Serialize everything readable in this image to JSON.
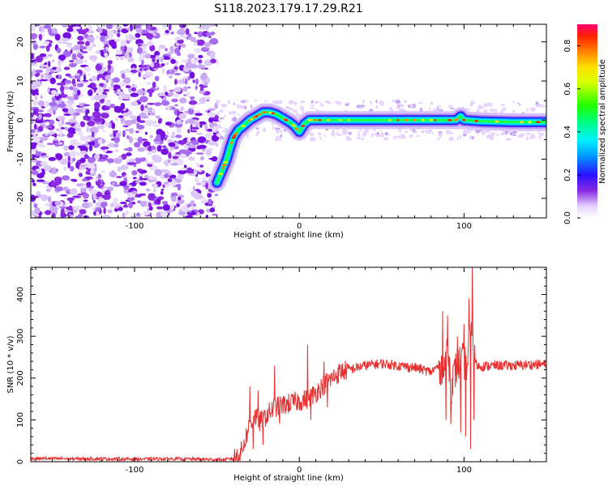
{
  "title": "S118.2023.179.17.29.R21",
  "chart_data": [
    {
      "type": "heatmap",
      "xlabel": "Height of straight line (km)",
      "ylabel": "Frequency (Hz)",
      "xlim": [
        -163,
        150
      ],
      "ylim": [
        -25,
        24.5
      ],
      "xticks": [
        -100,
        0,
        100
      ],
      "yticks": [
        -20,
        -10,
        0,
        10,
        20
      ],
      "grid": false,
      "noise_region": {
        "x_from": -163,
        "x_to": -50
      },
      "signal_trace": {
        "name": "",
        "x": [
          -50,
          -47,
          -44,
          -42,
          -40,
          -37,
          -34,
          -30,
          -26,
          -22,
          -18,
          -14,
          -10,
          -6,
          -3,
          0,
          3,
          6,
          10,
          20,
          40,
          60,
          80,
          90,
          95,
          98,
          100,
          110,
          130,
          150
        ],
        "y": [
          -16,
          -13,
          -10,
          -7,
          -4.5,
          -2.5,
          -1.5,
          0,
          1,
          2,
          2,
          1.5,
          0.5,
          -0.5,
          -1.5,
          -3,
          -1,
          0,
          0,
          0,
          0,
          0,
          0,
          0,
          0,
          1,
          0,
          -0.3,
          -0.5,
          -0.5
        ]
      },
      "colorbar": {
        "label": "Normalized spectral amplitude",
        "min": 0,
        "max": 0.9,
        "ticks": [
          "0.0",
          "0.2",
          "0.4",
          "0.6",
          "0.8"
        ]
      }
    },
    {
      "type": "line",
      "xlabel": "Height of straight line (km)",
      "ylabel": "SNR (10 * v/v)",
      "xlim": [
        -163,
        150
      ],
      "ylim": [
        0,
        465
      ],
      "xticks": [
        -100,
        0,
        100
      ],
      "yticks": [
        0,
        100,
        200,
        300,
        400
      ],
      "grid": false,
      "series": [
        {
          "name": "",
          "color": "#e83030",
          "x": [
            -163,
            -140,
            -120,
            -100,
            -80,
            -60,
            -50,
            -45,
            -40,
            -35,
            -30,
            -27,
            -24,
            -20,
            -15,
            -10,
            -5,
            0,
            5,
            10,
            15,
            20,
            25,
            30,
            40,
            50,
            60,
            70,
            80,
            85,
            88,
            90,
            92,
            95,
            98,
            100,
            102,
            104,
            105,
            106,
            108,
            110,
            120,
            130,
            140,
            150
          ],
          "values": [
            8,
            7,
            7,
            6,
            7,
            6,
            5,
            5,
            8,
            25,
            90,
            110,
            95,
            110,
            130,
            135,
            140,
            145,
            150,
            165,
            185,
            200,
            215,
            220,
            230,
            235,
            230,
            225,
            215,
            230,
            220,
            290,
            180,
            220,
            240,
            240,
            230,
            320,
            350,
            250,
            230,
            228,
            230,
            230,
            232,
            233
          ]
        }
      ],
      "spikes": [
        {
          "x": 87,
          "value": 360
        },
        {
          "x": 89,
          "value": 100
        },
        {
          "x": 90,
          "value": 350
        },
        {
          "x": 92,
          "value": 90
        },
        {
          "x": 96,
          "value": 300
        },
        {
          "x": 98,
          "value": 70
        },
        {
          "x": 100,
          "value": 330
        },
        {
          "x": 101,
          "value": 60
        },
        {
          "x": 103,
          "value": 390
        },
        {
          "x": 104,
          "value": 30
        },
        {
          "x": 105,
          "value": 465
        },
        {
          "x": 106,
          "value": 100
        },
        {
          "x": -30,
          "value": 180
        },
        {
          "x": -28,
          "value": 30
        },
        {
          "x": -25,
          "value": 170
        },
        {
          "x": -22,
          "value": 40
        },
        {
          "x": -15,
          "value": 230
        },
        {
          "x": -12,
          "value": 90
        },
        {
          "x": 5,
          "value": 280
        },
        {
          "x": 7,
          "value": 100
        },
        {
          "x": 15,
          "value": 240
        },
        {
          "x": 17,
          "value": 130
        }
      ]
    }
  ]
}
